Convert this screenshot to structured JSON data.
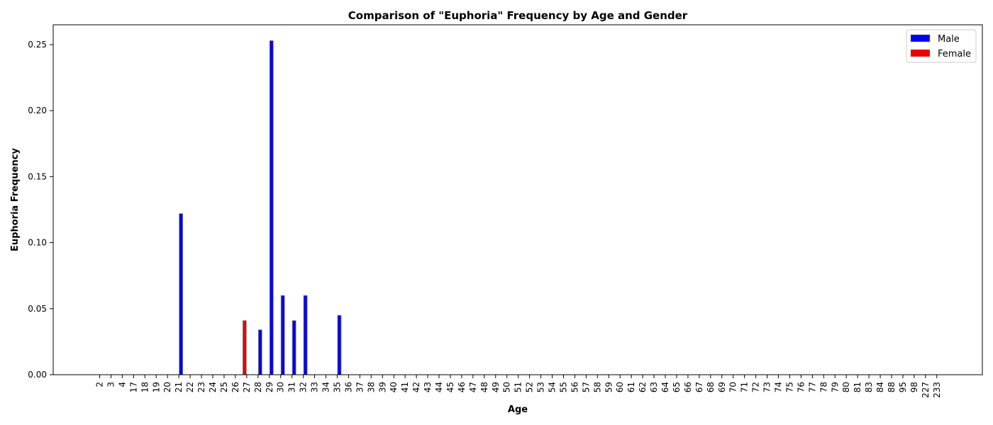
{
  "chart_data": {
    "type": "bar",
    "title": "Comparison of \"Euphoria\" Frequency by Age and Gender",
    "xlabel": "Age",
    "ylabel": "Euphoria Frequency",
    "ylim": [
      0,
      0.265
    ],
    "yticks": [
      "0.00",
      "0.05",
      "0.10",
      "0.15",
      "0.20",
      "0.25"
    ],
    "grid": false,
    "legend_position": "top-right",
    "categories": [
      "2",
      "3",
      "4",
      "17",
      "18",
      "19",
      "20",
      "21",
      "22",
      "23",
      "24",
      "25",
      "26",
      "27",
      "28",
      "29",
      "30",
      "31",
      "32",
      "33",
      "34",
      "35",
      "36",
      "37",
      "38",
      "39",
      "40",
      "41",
      "42",
      "43",
      "44",
      "45",
      "46",
      "47",
      "48",
      "49",
      "50",
      "51",
      "52",
      "53",
      "54",
      "55",
      "56",
      "57",
      "58",
      "59",
      "60",
      "61",
      "62",
      "63",
      "64",
      "65",
      "66",
      "67",
      "68",
      "69",
      "70",
      "71",
      "72",
      "73",
      "74",
      "75",
      "76",
      "77",
      "78",
      "79",
      "80",
      "81",
      "83",
      "84",
      "88",
      "95",
      "98",
      "227",
      "233"
    ],
    "series": [
      {
        "name": "Male",
        "color": "#0000ee",
        "values": [
          0,
          0,
          0,
          0,
          0,
          0,
          0,
          0.122,
          0,
          0,
          0,
          0,
          0,
          0,
          0.034,
          0.253,
          0.06,
          0.041,
          0.06,
          0,
          0,
          0.045,
          0,
          0,
          0,
          0,
          0,
          0,
          0,
          0,
          0,
          0,
          0,
          0,
          0,
          0,
          0,
          0,
          0,
          0,
          0,
          0,
          0,
          0,
          0,
          0,
          0,
          0,
          0,
          0,
          0,
          0,
          0,
          0,
          0,
          0,
          0,
          0,
          0,
          0,
          0,
          0,
          0,
          0,
          0,
          0,
          0,
          0,
          0,
          0,
          0,
          0,
          0,
          0,
          0
        ]
      },
      {
        "name": "Female",
        "color": "#ee0000",
        "values": [
          0,
          0,
          0,
          0,
          0,
          0,
          0,
          0,
          0,
          0,
          0,
          0,
          0,
          0.041,
          0,
          0,
          0,
          0,
          0,
          0,
          0,
          0,
          0,
          0,
          0,
          0,
          0,
          0,
          0,
          0,
          0,
          0,
          0,
          0,
          0,
          0,
          0,
          0,
          0,
          0,
          0,
          0,
          0,
          0,
          0,
          0,
          0,
          0,
          0,
          0,
          0,
          0,
          0,
          0,
          0,
          0,
          0,
          0,
          0,
          0,
          0,
          0,
          0,
          0,
          0,
          0,
          0,
          0,
          0,
          0,
          0,
          0,
          0,
          0,
          0
        ]
      }
    ]
  }
}
